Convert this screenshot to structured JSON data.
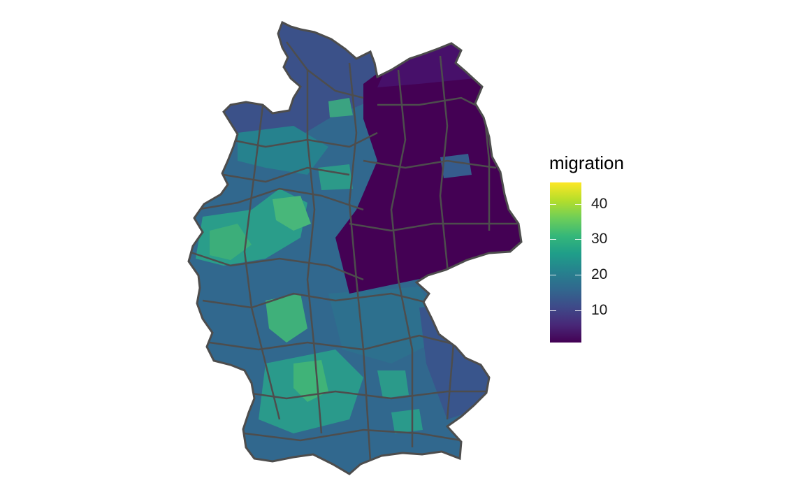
{
  "legend": {
    "title": "migration",
    "scale_min": 1,
    "scale_max": 46,
    "ticks": [
      {
        "value": 10,
        "label": "10"
      },
      {
        "value": 20,
        "label": "20"
      },
      {
        "value": 30,
        "label": "30"
      },
      {
        "value": 40,
        "label": "40"
      }
    ],
    "palette": [
      "#440154",
      "#482878",
      "#3e4a89",
      "#31688e",
      "#26828e",
      "#1f9e89",
      "#35b779",
      "#6ece58",
      "#b5de2b",
      "#fde725"
    ]
  },
  "map": {
    "outline_color": "#4d4d4d",
    "background": "#ffffff"
  }
}
